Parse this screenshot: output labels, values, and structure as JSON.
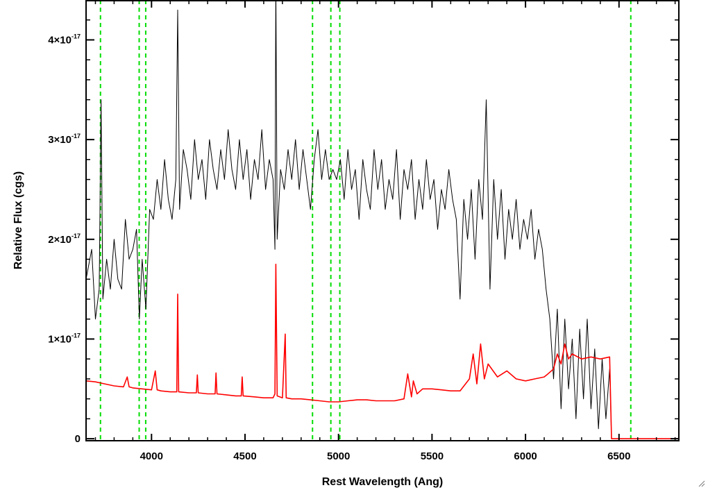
{
  "chart_data": {
    "type": "line",
    "xlabel": "Rest Wavelength (Ang)",
    "ylabel": "Relative Flux (cgs)",
    "xlim": [
      3650,
      6820
    ],
    "ylim": [
      -0.02,
      4.4
    ],
    "y_unit_exponent": "-17",
    "x_ticks": [
      4000,
      4500,
      5000,
      5500,
      6000,
      6500
    ],
    "x_tick_labels": [
      "4000",
      "4500",
      "5000",
      "5500",
      "6000",
      "6500"
    ],
    "y_ticks": [
      0,
      1,
      2,
      3,
      4
    ],
    "y_tick_labels": [
      {
        "base": "0",
        "exp": ""
      },
      {
        "base": "1×10",
        "exp": "-17"
      },
      {
        "base": "2×10",
        "exp": "-17"
      },
      {
        "base": "3×10",
        "exp": "-17"
      },
      {
        "base": "4×10",
        "exp": "-17"
      }
    ],
    "vertical_lines": {
      "color": "#00dd00",
      "style": "dashed",
      "x": [
        3727,
        3934,
        3969,
        4861,
        4959,
        5007,
        6563
      ]
    },
    "series": [
      {
        "color": "#000000",
        "points": [
          [
            3650,
            1.6
          ],
          [
            3680,
            1.9
          ],
          [
            3700,
            1.2
          ],
          [
            3720,
            1.5
          ],
          [
            3730,
            3.4
          ],
          [
            3740,
            1.4
          ],
          [
            3760,
            1.8
          ],
          [
            3780,
            1.5
          ],
          [
            3800,
            2.0
          ],
          [
            3820,
            1.6
          ],
          [
            3840,
            1.5
          ],
          [
            3860,
            2.2
          ],
          [
            3880,
            1.8
          ],
          [
            3900,
            1.9
          ],
          [
            3920,
            2.1
          ],
          [
            3935,
            1.2
          ],
          [
            3950,
            1.8
          ],
          [
            3970,
            1.3
          ],
          [
            3990,
            2.3
          ],
          [
            4010,
            2.2
          ],
          [
            4030,
            2.6
          ],
          [
            4050,
            2.3
          ],
          [
            4070,
            2.8
          ],
          [
            4090,
            2.4
          ],
          [
            4110,
            2.2
          ],
          [
            4130,
            2.6
          ],
          [
            4140,
            4.3
          ],
          [
            4150,
            2.3
          ],
          [
            4170,
            2.9
          ],
          [
            4190,
            2.7
          ],
          [
            4210,
            2.4
          ],
          [
            4230,
            3.0
          ],
          [
            4250,
            2.6
          ],
          [
            4270,
            2.8
          ],
          [
            4290,
            2.4
          ],
          [
            4310,
            3.0
          ],
          [
            4330,
            2.7
          ],
          [
            4350,
            2.5
          ],
          [
            4370,
            2.9
          ],
          [
            4390,
            2.6
          ],
          [
            4410,
            3.1
          ],
          [
            4430,
            2.7
          ],
          [
            4450,
            2.5
          ],
          [
            4470,
            3.0
          ],
          [
            4490,
            2.6
          ],
          [
            4510,
            2.9
          ],
          [
            4530,
            2.4
          ],
          [
            4550,
            2.8
          ],
          [
            4570,
            2.6
          ],
          [
            4590,
            3.1
          ],
          [
            4610,
            2.5
          ],
          [
            4630,
            2.8
          ],
          [
            4650,
            2.6
          ],
          [
            4660,
            1.9
          ],
          [
            4665,
            4.6
          ],
          [
            4672,
            2.0
          ],
          [
            4690,
            2.7
          ],
          [
            4710,
            2.5
          ],
          [
            4730,
            2.9
          ],
          [
            4750,
            2.6
          ],
          [
            4770,
            3.0
          ],
          [
            4790,
            2.5
          ],
          [
            4810,
            2.9
          ],
          [
            4830,
            2.6
          ],
          [
            4850,
            2.3
          ],
          [
            4870,
            2.8
          ],
          [
            4890,
            3.1
          ],
          [
            4910,
            2.6
          ],
          [
            4930,
            2.9
          ],
          [
            4950,
            2.6
          ],
          [
            4970,
            2.7
          ],
          [
            4990,
            2.6
          ],
          [
            5010,
            2.8
          ],
          [
            5030,
            2.4
          ],
          [
            5050,
            2.9
          ],
          [
            5070,
            2.5
          ],
          [
            5090,
            2.7
          ],
          [
            5110,
            2.2
          ],
          [
            5130,
            2.8
          ],
          [
            5150,
            2.5
          ],
          [
            5170,
            2.3
          ],
          [
            5190,
            2.9
          ],
          [
            5210,
            2.5
          ],
          [
            5230,
            2.8
          ],
          [
            5250,
            2.3
          ],
          [
            5270,
            2.6
          ],
          [
            5290,
            2.4
          ],
          [
            5310,
            2.9
          ],
          [
            5330,
            2.2
          ],
          [
            5350,
            2.7
          ],
          [
            5370,
            2.5
          ],
          [
            5390,
            2.8
          ],
          [
            5410,
            2.2
          ],
          [
            5430,
            2.6
          ],
          [
            5450,
            2.3
          ],
          [
            5470,
            2.8
          ],
          [
            5490,
            2.4
          ],
          [
            5510,
            2.6
          ],
          [
            5530,
            2.1
          ],
          [
            5550,
            2.5
          ],
          [
            5570,
            2.3
          ],
          [
            5590,
            2.7
          ],
          [
            5610,
            2.4
          ],
          [
            5630,
            2.2
          ],
          [
            5650,
            1.4
          ],
          [
            5670,
            2.4
          ],
          [
            5690,
            2.0
          ],
          [
            5710,
            2.5
          ],
          [
            5730,
            1.8
          ],
          [
            5750,
            2.6
          ],
          [
            5770,
            2.2
          ],
          [
            5790,
            3.4
          ],
          [
            5810,
            1.5
          ],
          [
            5830,
            2.6
          ],
          [
            5850,
            2.0
          ],
          [
            5870,
            2.5
          ],
          [
            5890,
            1.8
          ],
          [
            5910,
            2.3
          ],
          [
            5930,
            2.0
          ],
          [
            5950,
            2.4
          ],
          [
            5970,
            1.9
          ],
          [
            5990,
            2.2
          ],
          [
            6010,
            2.0
          ],
          [
            6030,
            2.3
          ],
          [
            6050,
            1.8
          ],
          [
            6070,
            2.1
          ],
          [
            6090,
            1.9
          ],
          [
            6110,
            1.5
          ],
          [
            6130,
            1.2
          ],
          [
            6150,
            0.6
          ],
          [
            6170,
            1.3
          ],
          [
            6190,
            0.3
          ],
          [
            6210,
            1.2
          ],
          [
            6230,
            0.5
          ],
          [
            6250,
            1.0
          ],
          [
            6270,
            0.2
          ],
          [
            6290,
            1.1
          ],
          [
            6310,
            0.4
          ],
          [
            6330,
            1.2
          ],
          [
            6350,
            0.3
          ],
          [
            6370,
            0.9
          ],
          [
            6390,
            0.1
          ],
          [
            6410,
            0.8
          ],
          [
            6430,
            0.2
          ],
          [
            6450,
            0.7
          ],
          [
            6460,
            0.0
          ]
        ]
      },
      {
        "color": "#ff0000",
        "points": [
          [
            3650,
            0.58
          ],
          [
            3700,
            0.57
          ],
          [
            3750,
            0.55
          ],
          [
            3800,
            0.53
          ],
          [
            3850,
            0.52
          ],
          [
            3870,
            0.62
          ],
          [
            3880,
            0.52
          ],
          [
            3900,
            0.51
          ],
          [
            3950,
            0.5
          ],
          [
            4000,
            0.49
          ],
          [
            4020,
            0.68
          ],
          [
            4030,
            0.49
          ],
          [
            4050,
            0.48
          ],
          [
            4100,
            0.47
          ],
          [
            4135,
            0.47
          ],
          [
            4140,
            1.45
          ],
          [
            4145,
            0.47
          ],
          [
            4200,
            0.46
          ],
          [
            4240,
            0.46
          ],
          [
            4245,
            0.64
          ],
          [
            4250,
            0.46
          ],
          [
            4300,
            0.45
          ],
          [
            4340,
            0.45
          ],
          [
            4345,
            0.66
          ],
          [
            4350,
            0.45
          ],
          [
            4400,
            0.44
          ],
          [
            4450,
            0.43
          ],
          [
            4480,
            0.43
          ],
          [
            4485,
            0.62
          ],
          [
            4490,
            0.43
          ],
          [
            4550,
            0.42
          ],
          [
            4600,
            0.41
          ],
          [
            4650,
            0.41
          ],
          [
            4660,
            0.45
          ],
          [
            4665,
            1.75
          ],
          [
            4672,
            0.43
          ],
          [
            4700,
            0.41
          ],
          [
            4715,
            1.05
          ],
          [
            4720,
            0.41
          ],
          [
            4750,
            0.4
          ],
          [
            4800,
            0.4
          ],
          [
            4850,
            0.39
          ],
          [
            4900,
            0.38
          ],
          [
            4950,
            0.37
          ],
          [
            5000,
            0.37
          ],
          [
            5050,
            0.38
          ],
          [
            5100,
            0.39
          ],
          [
            5150,
            0.39
          ],
          [
            5200,
            0.38
          ],
          [
            5250,
            0.38
          ],
          [
            5300,
            0.38
          ],
          [
            5350,
            0.4
          ],
          [
            5370,
            0.65
          ],
          [
            5390,
            0.42
          ],
          [
            5400,
            0.58
          ],
          [
            5420,
            0.45
          ],
          [
            5450,
            0.5
          ],
          [
            5500,
            0.5
          ],
          [
            5550,
            0.49
          ],
          [
            5600,
            0.48
          ],
          [
            5650,
            0.48
          ],
          [
            5700,
            0.6
          ],
          [
            5720,
            0.85
          ],
          [
            5740,
            0.55
          ],
          [
            5760,
            0.95
          ],
          [
            5780,
            0.6
          ],
          [
            5800,
            0.75
          ],
          [
            5850,
            0.62
          ],
          [
            5900,
            0.68
          ],
          [
            5950,
            0.6
          ],
          [
            6000,
            0.58
          ],
          [
            6050,
            0.6
          ],
          [
            6100,
            0.62
          ],
          [
            6120,
            0.65
          ],
          [
            6150,
            0.7
          ],
          [
            6170,
            0.85
          ],
          [
            6190,
            0.75
          ],
          [
            6210,
            0.95
          ],
          [
            6230,
            0.8
          ],
          [
            6250,
            0.85
          ],
          [
            6300,
            0.8
          ],
          [
            6350,
            0.82
          ],
          [
            6400,
            0.8
          ],
          [
            6450,
            0.82
          ],
          [
            6460,
            0.0
          ],
          [
            6820,
            0.0
          ]
        ]
      }
    ]
  }
}
